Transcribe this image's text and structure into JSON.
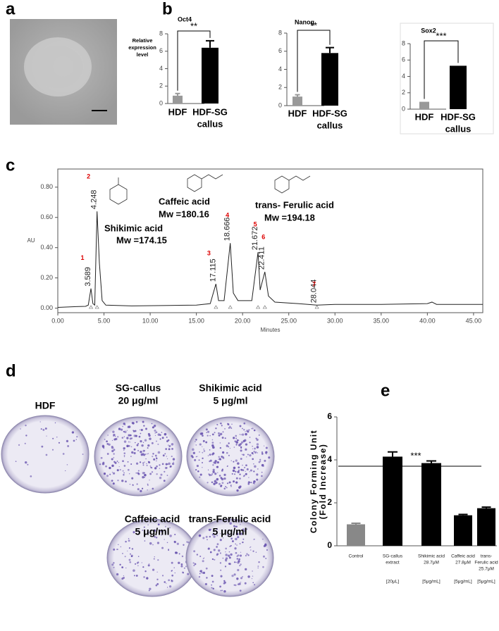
{
  "panel_labels": [
    "a",
    "b",
    "c",
    "d",
    "e"
  ],
  "chart_data": [
    {
      "type": "bar",
      "title": "Oct4",
      "ylabel": [
        "Relative",
        "expression",
        "level"
      ],
      "categories": [
        [
          "HDF"
        ],
        [
          "HDF-SG",
          "callus"
        ]
      ],
      "values": [
        0.9,
        6.4
      ],
      "errors": [
        0.25,
        0.8
      ],
      "colors": [
        "#999999",
        "#000000"
      ],
      "ylim": [
        0,
        8
      ],
      "yticks": [
        0,
        2,
        4,
        6,
        8
      ],
      "significance": "**"
    },
    {
      "type": "bar",
      "title": "Nanog",
      "categories": [
        [
          "HDF"
        ],
        [
          "HDF-SG",
          "callus"
        ]
      ],
      "values": [
        1.0,
        5.8
      ],
      "errors": [
        0.2,
        0.6
      ],
      "colors": [
        "#999999",
        "#000000"
      ],
      "ylim": [
        0,
        8
      ],
      "yticks": [
        0,
        2,
        4,
        6,
        8
      ],
      "significance": "**"
    },
    {
      "type": "bar",
      "title": "Sox2",
      "categories": [
        [
          "HDF"
        ],
        [
          "HDF-SG",
          "callus"
        ]
      ],
      "values": [
        0.9,
        5.3
      ],
      "colors": [
        "#999999",
        "#000000"
      ],
      "ylim": [
        0,
        8
      ],
      "yticks": [
        0,
        2,
        4,
        6,
        8
      ],
      "significance": "***"
    },
    {
      "type": "line",
      "xlabel": "Minutes",
      "ylabel": "AU",
      "color": "#222222",
      "x": [
        0,
        2,
        3,
        3.3,
        3.589,
        3.8,
        4.0,
        4.248,
        4.5,
        4.8,
        5.2,
        8,
        12,
        15,
        16.5,
        17.115,
        17.4,
        18.0,
        18.666,
        19.0,
        19.5,
        21.0,
        21.672,
        21.9,
        22.411,
        22.8,
        23.5,
        26,
        28.044,
        30,
        35,
        40,
        40.5,
        41,
        46
      ],
      "values": [
        0.005,
        0.01,
        0.012,
        0.02,
        0.13,
        0.03,
        0.02,
        0.64,
        0.3,
        0.05,
        0.02,
        0.015,
        0.018,
        0.02,
        0.03,
        0.16,
        0.05,
        0.05,
        0.43,
        0.1,
        0.05,
        0.05,
        0.37,
        0.12,
        0.24,
        0.08,
        0.04,
        0.03,
        0.02,
        0.025,
        0.025,
        0.03,
        0.04,
        0.025,
        0.025
      ],
      "peaks": {
        "numbers": [
          1,
          2,
          3,
          4,
          5,
          6,
          7
        ],
        "times": [
          3.589,
          4.248,
          17.115,
          18.666,
          21.672,
          22.411,
          28.044
        ],
        "heights": [
          0.13,
          0.64,
          0.16,
          0.43,
          0.37,
          0.24,
          0.02
        ]
      },
      "compounds": [
        {
          "name": "Shikimic acid",
          "mw": "Mw =174.15"
        },
        {
          "name": "Caffeic acid",
          "mw": "Mw =180.16"
        },
        {
          "name": "trans- Ferulic acid",
          "mw": "Mw =194.18"
        }
      ],
      "xlim": [
        0,
        46
      ],
      "ylim": [
        -0.03,
        0.92
      ],
      "xticks": [
        {
          "value": 0,
          "label": "0.00"
        },
        {
          "value": 5,
          "label": "5.00"
        },
        {
          "value": 10,
          "label": "10.00"
        },
        {
          "value": 15,
          "label": "15.00"
        },
        {
          "value": 20,
          "label": "20.00"
        },
        {
          "value": 25,
          "label": "25.00"
        },
        {
          "value": 30,
          "label": "30.00"
        },
        {
          "value": 35,
          "label": "35.00"
        },
        {
          "value": 40,
          "label": "40.00"
        },
        {
          "value": 45,
          "label": "45.00"
        }
      ],
      "yticks": [
        {
          "value": 0,
          "label": "0.00"
        },
        {
          "value": 0.2,
          "label": "0.20"
        },
        {
          "value": 0.4,
          "label": "0.40"
        },
        {
          "value": 0.6,
          "label": "0.60"
        },
        {
          "value": 0.8,
          "label": "0.80"
        }
      ]
    },
    {
      "type": "bar",
      "ylabel": [
        "Colony Forming Unit",
        "(Fold Increase)"
      ],
      "categories": [
        [
          "Control"
        ],
        [
          "SG-callus",
          "extract"
        ],
        [
          "Shikimic acid",
          "28.7μM"
        ],
        [
          "Caffeic acid",
          "27.8μM"
        ],
        [
          "trans-",
          "Ferulic acid",
          "25.7μM"
        ]
      ],
      "doses": [
        null,
        "[20μL]",
        "[5μg/mL]",
        "[5μg/mL]",
        "[5μg/mL]"
      ],
      "values": [
        1.0,
        4.15,
        3.85,
        1.42,
        1.75
      ],
      "errors": [
        0.05,
        0.22,
        0.1,
        0.04,
        0.05
      ],
      "colors": [
        "#888888",
        "#000000",
        "#000000",
        "#000000",
        "#000000"
      ],
      "ylim": [
        0,
        6
      ],
      "yticks": [
        0,
        2,
        4,
        6
      ],
      "significance": "***"
    }
  ],
  "plates": [
    [
      "HDF"
    ],
    [
      "SG-callus",
      "20 μg/ml"
    ],
    [
      "Shikimic acid",
      "5 μg/ml"
    ],
    [
      "Caffeic acid",
      "5 μg/ml"
    ],
    [
      "trans-Ferulic acid",
      "5 μg/ml"
    ]
  ]
}
